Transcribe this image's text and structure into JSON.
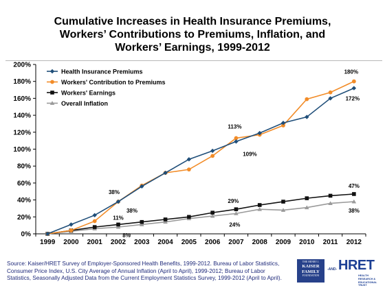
{
  "title_lines": [
    "Cumulative Increases in Health Insurance Premiums,",
    "Workers’ Contributions to Premiums, Inflation, and",
    "Workers’ Earnings, 1999-2012"
  ],
  "chart_data": {
    "type": "line",
    "title": "Cumulative Increases in Health Insurance Premiums, Workers’ Contributions to Premiums, Inflation, and Workers’ Earnings, 1999-2012",
    "xlabel": "",
    "ylabel": "",
    "categories": [
      "1999",
      "2000",
      "2001",
      "2002",
      "2003",
      "2004",
      "2005",
      "2006",
      "2007",
      "2008",
      "2009",
      "2010",
      "2011",
      "2012"
    ],
    "ylim": [
      0,
      200
    ],
    "yticks": [
      "0%",
      "20%",
      "40%",
      "60%",
      "80%",
      "100%",
      "120%",
      "140%",
      "160%",
      "180%",
      "200%"
    ],
    "legend_position": "top-left",
    "grid": false,
    "series": [
      {
        "name": "Health Insurance Premiums",
        "color": "#1f4e79",
        "marker": "diamond",
        "values": [
          0,
          11,
          22,
          38,
          56,
          72,
          88,
          98,
          109,
          119,
          131,
          138,
          160,
          172
        ]
      },
      {
        "name": "Workers' Contribution to Premiums",
        "color": "#f28c28",
        "marker": "circle",
        "values": [
          0,
          4,
          15,
          38,
          57,
          72,
          76,
          92,
          113,
          117,
          128,
          159,
          167,
          180
        ]
      },
      {
        "name": "Workers' Earnings",
        "color": "#111111",
        "marker": "square",
        "values": [
          0,
          4,
          8,
          11,
          14,
          17,
          20,
          25,
          29,
          34,
          38,
          42,
          45,
          47
        ]
      },
      {
        "name": "Overall Inflation",
        "color": "#9a9a9a",
        "marker": "triangle",
        "values": [
          0,
          3,
          6,
          8,
          11,
          14,
          18,
          21,
          24,
          29,
          28,
          31,
          36,
          38
        ]
      }
    ],
    "annotations": [
      {
        "text": "38%",
        "category": "2002",
        "series": 1
      },
      {
        "text": "38%",
        "category": "2002",
        "series": 0
      },
      {
        "text": "11%",
        "category": "2002",
        "series": 2
      },
      {
        "text": "8%",
        "category": "2002",
        "series": 3
      },
      {
        "text": "113%",
        "category": "2007",
        "series": 1
      },
      {
        "text": "109%",
        "category": "2007",
        "series": 0
      },
      {
        "text": "29%",
        "category": "2007",
        "series": 2
      },
      {
        "text": "24%",
        "category": "2007",
        "series": 3
      },
      {
        "text": "180%",
        "category": "2012",
        "series": 1
      },
      {
        "text": "172%",
        "category": "2012",
        "series": 0
      },
      {
        "text": "47%",
        "category": "2012",
        "series": 2
      },
      {
        "text": "38%",
        "category": "2012",
        "series": 3
      }
    ]
  },
  "source_text": "Source:  Kaiser/HRET Survey of Employer-Sponsored Health Benefits, 1999-2012.  Bureau of Labor Statistics, Consumer Price Index, U.S. City Average of Annual Inflation (April to April), 1999-2012; Bureau of Labor Statistics, Seasonally Adjusted Data from the Current Employment Statistics Survey, 1999-2012 (April to April).",
  "logos": {
    "kff_top": "THE HENRY J.",
    "kff_line1": "KAISER",
    "kff_line2": "FAMILY",
    "kff_bottom": "FOUNDATION",
    "and": "-AND-",
    "hret": "HRET",
    "hret_sub": "HEALTH RESEARCH & EDUCATIONAL TRUST"
  }
}
